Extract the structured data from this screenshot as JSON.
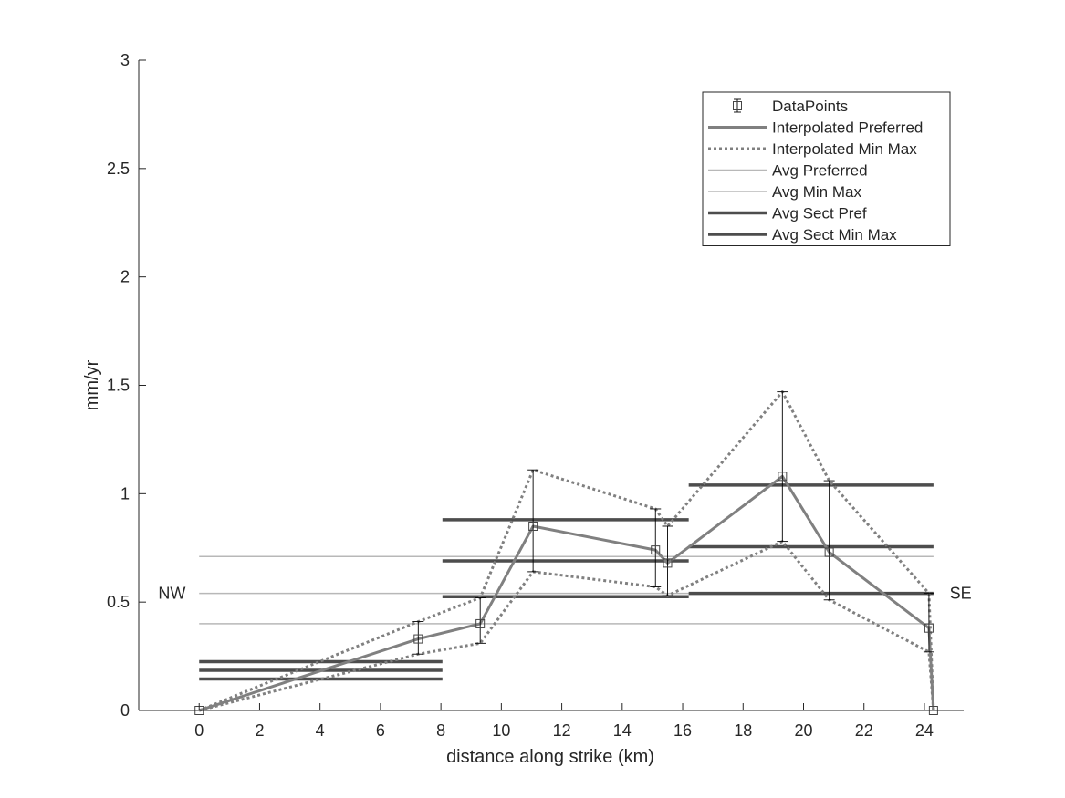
{
  "chart_data": {
    "type": "line",
    "xlabel": "distance along strike (km)",
    "ylabel": "mm/yr",
    "xlim": [
      -2,
      25.3
    ],
    "ylim": [
      0,
      3
    ],
    "xticks": [
      0,
      2,
      4,
      6,
      8,
      10,
      12,
      14,
      16,
      18,
      20,
      22,
      24
    ],
    "yticks": [
      0,
      0.5,
      1,
      1.5,
      2,
      2.5,
      3
    ],
    "ytick_labels": [
      "0",
      "0.5",
      "1",
      "1.5",
      "2",
      "2.5",
      "3"
    ],
    "grid": false,
    "legend_position": "top-right",
    "annotations": [
      {
        "text": "NW",
        "x": -0.9,
        "y": 0.54
      },
      {
        "text": "SE",
        "x": 25.2,
        "y": 0.54
      }
    ],
    "legend": [
      {
        "label": "DataPoints",
        "style": "marker"
      },
      {
        "label": "Interpolated Preferred",
        "style": "solid-gray"
      },
      {
        "label": "Interpolated Min Max",
        "style": "dotted-gray"
      },
      {
        "label": "Avg Preferred",
        "style": "thin-light"
      },
      {
        "label": "Avg Min Max",
        "style": "thin-light"
      },
      {
        "label": "Avg Sect Pref",
        "style": "thick-dark"
      },
      {
        "label": "Avg Sect Min Max",
        "style": "thick-dark"
      }
    ],
    "data_points": {
      "x": [
        0,
        7.25,
        9.3,
        11.05,
        15.1,
        15.5,
        19.3,
        20.85,
        24.15,
        24.3
      ],
      "y": [
        0,
        0.33,
        0.4,
        0.85,
        0.74,
        0.68,
        1.08,
        0.73,
        0.38,
        0
      ],
      "err_low": [
        0,
        0.26,
        0.31,
        0.64,
        0.57,
        0.53,
        0.78,
        0.51,
        0.27,
        0
      ],
      "err_high": [
        0,
        0.41,
        0.52,
        1.11,
        0.93,
        0.85,
        1.47,
        1.06,
        0.54,
        0
      ]
    },
    "series": [
      {
        "name": "Interpolated Preferred",
        "style": "solid",
        "x": [
          0,
          7.25,
          9.3,
          11.05,
          15.1,
          15.5,
          19.3,
          20.85,
          24.15,
          24.3
        ],
        "y": [
          0,
          0.33,
          0.4,
          0.85,
          0.74,
          0.68,
          1.08,
          0.73,
          0.38,
          0
        ]
      },
      {
        "name": "Interpolated Min Max",
        "style": "dotted",
        "part": "min",
        "x": [
          0,
          7.25,
          9.3,
          11.05,
          15.1,
          15.5,
          19.3,
          20.85,
          24.15,
          24.3
        ],
        "y": [
          0,
          0.26,
          0.31,
          0.64,
          0.57,
          0.53,
          0.78,
          0.51,
          0.27,
          0
        ]
      },
      {
        "name": "Interpolated Min Max",
        "style": "dotted",
        "part": "max",
        "x": [
          0,
          7.25,
          9.3,
          11.05,
          15.1,
          15.5,
          19.3,
          20.85,
          24.15,
          24.3
        ],
        "y": [
          0,
          0.41,
          0.52,
          1.11,
          0.93,
          0.85,
          1.47,
          1.06,
          0.54,
          0
        ]
      }
    ],
    "avg_lines": [
      {
        "name": "Avg Preferred",
        "x": [
          0,
          24.3
        ],
        "y": 0.54
      },
      {
        "name": "Avg Min Max",
        "x": [
          0,
          24.3
        ],
        "y": 0.4
      },
      {
        "name": "Avg Min Max",
        "x": [
          0,
          24.3
        ],
        "y": 0.71
      }
    ],
    "section_lines": [
      {
        "name": "Avg Sect Pref",
        "x": [
          0,
          8.05
        ],
        "y": 0.185
      },
      {
        "name": "Avg Sect Min Max",
        "x": [
          0,
          8.05
        ],
        "y": 0.145
      },
      {
        "name": "Avg Sect Min Max",
        "x": [
          0,
          8.05
        ],
        "y": 0.225
      },
      {
        "name": "Avg Sect Pref",
        "x": [
          8.05,
          16.2
        ],
        "y": 0.69
      },
      {
        "name": "Avg Sect Min Max",
        "x": [
          8.05,
          16.2
        ],
        "y": 0.525
      },
      {
        "name": "Avg Sect Min Max",
        "x": [
          8.05,
          16.2
        ],
        "y": 0.88
      },
      {
        "name": "Avg Sect Pref",
        "x": [
          16.2,
          24.3
        ],
        "y": 0.755
      },
      {
        "name": "Avg Sect Min Max",
        "x": [
          16.2,
          24.3
        ],
        "y": 0.54
      },
      {
        "name": "Avg Sect Min Max",
        "x": [
          16.2,
          24.3
        ],
        "y": 1.04
      }
    ],
    "colors": {
      "interpolated": "#808080",
      "average": "#b8b8b8",
      "section": "#4d4d4d",
      "datapoints": "#000000",
      "axis": "#262626"
    }
  }
}
